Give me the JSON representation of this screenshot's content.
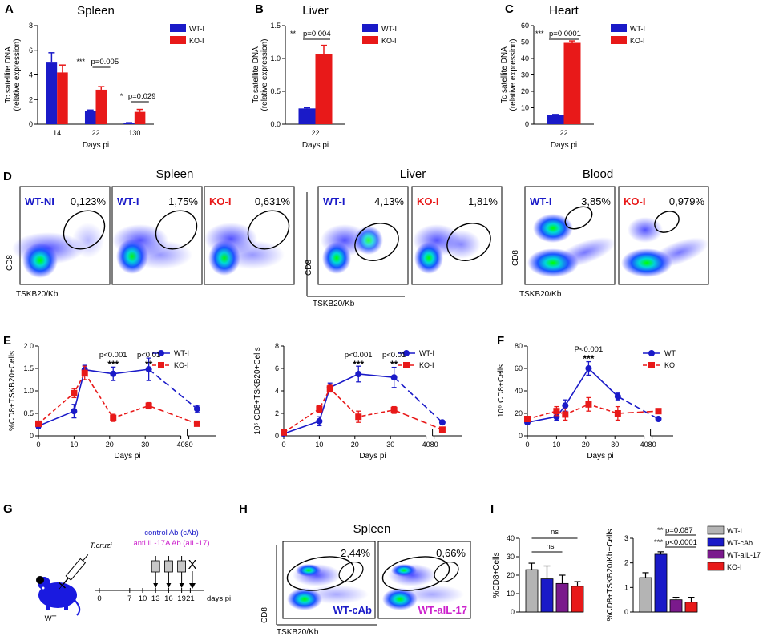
{
  "colors": {
    "wt": "#1a1ac8",
    "ko": "#e81919",
    "grey": "#b4b4b4",
    "purple": "#7a1a8c",
    "magenta": "#cc22cc",
    "dark": "#000000"
  },
  "chart_data": [
    {
      "panel": "A",
      "type": "bar",
      "title": "Spleen",
      "ylabel": "Tc satellite DNA (relative expression)",
      "xlabel": "Days pi",
      "ylim": [
        0,
        8
      ],
      "yticks": [
        "0",
        "2",
        "4",
        "6",
        "8"
      ],
      "categories": [
        "14",
        "22",
        "130"
      ],
      "series": [
        {
          "name": "WT-I",
          "values": [
            5.0,
            1.1,
            0.1
          ],
          "errors": [
            0.8,
            0.05,
            0.02
          ]
        },
        {
          "name": "KO-I",
          "values": [
            4.2,
            2.8,
            1.0
          ],
          "errors": [
            0.6,
            0.25,
            0.2
          ]
        }
      ],
      "annotations": [
        {
          "stars": "***",
          "text": "p=0.005"
        },
        {
          "stars": "*",
          "text": "p=0.029"
        }
      ]
    },
    {
      "panel": "B",
      "type": "bar",
      "title": "Liver",
      "ylabel": "Tc satellite DNA (relative expression)",
      "xlabel": "Days pi",
      "ylim": [
        0,
        1.5
      ],
      "yticks": [
        "0.0",
        "0.5",
        "1.0",
        "1.5"
      ],
      "categories": [
        "22"
      ],
      "series": [
        {
          "name": "WT-I",
          "values": [
            0.24
          ],
          "errors": [
            0.01
          ]
        },
        {
          "name": "KO-I",
          "values": [
            1.07
          ],
          "errors": [
            0.13
          ]
        }
      ],
      "annotations": [
        {
          "stars": "**",
          "text": "p=0.004"
        }
      ]
    },
    {
      "panel": "C",
      "type": "bar",
      "title": "Heart",
      "ylabel": "Tc satellite DNA (relative expression)",
      "xlabel": "Days pi",
      "ylim": [
        0,
        60
      ],
      "yticks": [
        "0",
        "10",
        "20",
        "30",
        "40",
        "50",
        "60"
      ],
      "categories": [
        "22"
      ],
      "series": [
        {
          "name": "WT-I",
          "values": [
            5.5
          ],
          "errors": [
            0.4
          ]
        },
        {
          "name": "KO-I",
          "values": [
            49.5
          ],
          "errors": [
            1.2
          ]
        }
      ],
      "annotations": [
        {
          "stars": "***",
          "text": "p=0.0001"
        }
      ]
    },
    {
      "panel": "E1",
      "type": "line",
      "ylabel": "%CD8+TSKB20+Cells",
      "xlabel": "Days pi",
      "ylim": [
        0,
        2.0
      ],
      "yticks": [
        "0",
        "0.5",
        "1.0",
        "1.5",
        "2.0"
      ],
      "xticks": [
        "0",
        "10",
        "20",
        "30",
        "40",
        "80"
      ],
      "series": [
        {
          "name": "WT-I",
          "x": [
            0,
            10,
            13,
            21,
            31,
            83
          ],
          "values": [
            0.22,
            0.55,
            1.47,
            1.38,
            1.48,
            0.6
          ],
          "errors": [
            0.05,
            0.15,
            0.1,
            0.15,
            0.25,
            0.08
          ]
        },
        {
          "name": "KO-I",
          "x": [
            0,
            10,
            13,
            21,
            31,
            83
          ],
          "values": [
            0.27,
            0.95,
            1.4,
            0.4,
            0.67,
            0.27
          ],
          "errors": [
            0.04,
            0.1,
            0.15,
            0.08,
            0.07,
            0.02
          ]
        }
      ],
      "annotations": [
        {
          "p": "p<0.001",
          "stars": "***"
        },
        {
          "p": "p<0.01",
          "stars": "**"
        }
      ]
    },
    {
      "panel": "E2",
      "type": "line",
      "ylabel": "10^6 CD8+TSKB20+Cells",
      "xlabel": "Days pi",
      "ylim": [
        0,
        8
      ],
      "yticks": [
        "0",
        "2",
        "4",
        "6",
        "8"
      ],
      "xticks": [
        "0",
        "10",
        "20",
        "30",
        "40",
        "80"
      ],
      "series": [
        {
          "name": "WT-I",
          "x": [
            0,
            10,
            13,
            21,
            31,
            83
          ],
          "values": [
            0.2,
            1.3,
            4.3,
            5.5,
            5.2,
            1.2
          ],
          "errors": [
            0.05,
            0.4,
            0.4,
            0.7,
            0.9,
            0.1
          ]
        },
        {
          "name": "KO-I",
          "x": [
            0,
            10,
            13,
            21,
            31,
            83
          ],
          "values": [
            0.3,
            2.4,
            4.2,
            1.7,
            2.3,
            0.55
          ],
          "errors": [
            0.05,
            0.3,
            0.3,
            0.5,
            0.3,
            0.05
          ]
        }
      ],
      "annotations": [
        {
          "p": "p<0.001",
          "stars": "***"
        },
        {
          "p": "p<0.01",
          "stars": "**"
        }
      ]
    },
    {
      "panel": "F",
      "type": "line",
      "ylabel": "10^6 CD8+Cells",
      "xlabel": "Days pi",
      "ylim": [
        0,
        80
      ],
      "yticks": [
        "0",
        "20",
        "40",
        "60",
        "80"
      ],
      "xticks": [
        "0",
        "10",
        "20",
        "30",
        "40",
        "80"
      ],
      "series": [
        {
          "name": "WT",
          "x": [
            0,
            10,
            13,
            21,
            31,
            83
          ],
          "values": [
            12,
            17,
            27,
            60,
            35,
            15
          ],
          "errors": [
            2,
            3,
            5,
            6,
            3,
            1
          ]
        },
        {
          "name": "KO",
          "x": [
            0,
            10,
            13,
            21,
            31,
            83
          ],
          "values": [
            15,
            22,
            19,
            28,
            20,
            22
          ],
          "errors": [
            2,
            4,
            5,
            6,
            6,
            2
          ]
        }
      ],
      "annotations": [
        {
          "p": "P<0.001",
          "stars": "***"
        }
      ]
    },
    {
      "panel": "I1",
      "type": "bar",
      "ylabel": "%CD8+Cells",
      "ylim": [
        0,
        40
      ],
      "yticks": [
        "0",
        "10",
        "20",
        "30",
        "40"
      ],
      "categories": [
        "WT-I",
        "WT-cAb",
        "WT-aIL-17",
        "KO-I"
      ],
      "values": [
        23,
        18,
        15.5,
        14
      ],
      "errors": [
        3.5,
        7,
        4.5,
        2.5
      ],
      "annotations": [
        "ns",
        "ns"
      ]
    },
    {
      "panel": "I2",
      "type": "bar",
      "ylabel": "%CD8+TSKB20/Kb+Cells",
      "ylim": [
        0,
        3
      ],
      "yticks": [
        "0",
        "1",
        "2",
        "3"
      ],
      "categories": [
        "WT-I",
        "WT-cAb",
        "WT-aIL-17",
        "KO-I"
      ],
      "values": [
        1.4,
        2.35,
        0.5,
        0.4
      ],
      "errors": [
        0.2,
        0.1,
        0.1,
        0.2
      ],
      "annotations": [
        {
          "stars": "**",
          "text": "p=0.087"
        },
        {
          "stars": "***",
          "text": "p<0.0001"
        }
      ],
      "legend": [
        "WT-I",
        "WT-cAb",
        "WT-aIL-17",
        "KO-I"
      ]
    }
  ],
  "panels": {
    "A": "A",
    "B": "B",
    "C": "C",
    "D": "D",
    "E": "E",
    "F": "F",
    "G": "G",
    "H": "H",
    "I": "I"
  },
  "flow_d": {
    "titles": [
      "Spleen",
      "Liver",
      "Blood"
    ],
    "ylabel": "CD8",
    "xlabel": "TSKB20/Kb",
    "gates": [
      {
        "label": "WT-NI",
        "value": "0,123%"
      },
      {
        "label": "WT-I",
        "value": "1,75%"
      },
      {
        "label": "KO-I",
        "value": "0,631%"
      },
      {
        "label": "WT-I",
        "value": "4,13%"
      },
      {
        "label": "KO-I",
        "value": "1,81%"
      },
      {
        "label": "WT-I",
        "value": "3,85%"
      },
      {
        "label": "KO-I",
        "value": "0,979%"
      }
    ]
  },
  "flow_h": {
    "title": "Spleen",
    "ylabel": "CD8",
    "xlabel": "TSKB20/Kb",
    "gates": [
      {
        "label": "WT-cAb",
        "value": "2,44%"
      },
      {
        "label": "WT-aIL-17",
        "value": "0,66%"
      }
    ]
  },
  "scheme_g": {
    "pathogen": "T.cruzi",
    "mouse": "WT",
    "control_ab": "control Ab (cAb)",
    "anti_ab": "anti IL-17A Ab (aIL-17)",
    "ticks": [
      "0",
      "7",
      "10",
      "13",
      "16",
      "19",
      "21"
    ],
    "units": "days pi",
    "cross": "X"
  }
}
